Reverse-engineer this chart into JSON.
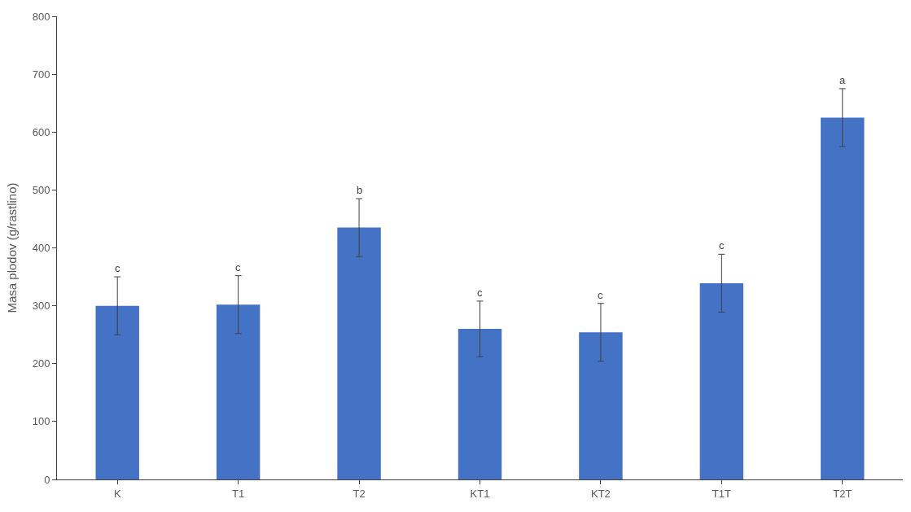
{
  "chart_data": {
    "type": "bar",
    "ylabel": "Masa plodov (g/rastlino)",
    "categories": [
      "K",
      "T1",
      "T2",
      "KT1",
      "KT2",
      "T1T",
      "T2T"
    ],
    "values": [
      300,
      302,
      435,
      260,
      254,
      339,
      625
    ],
    "errors": [
      50,
      50,
      50,
      48,
      50,
      50,
      50
    ],
    "color": "#4472c4",
    "ylim": [
      0,
      800
    ],
    "yticks": [
      0,
      100,
      200,
      300,
      400,
      500,
      600,
      700,
      800
    ],
    "grid": false,
    "annotations": [
      {
        "text": "c",
        "x": "K",
        "y": 350
      },
      {
        "text": "c",
        "x": "T1",
        "y": 352
      },
      {
        "text": "b",
        "x": "T2",
        "y": 485
      },
      {
        "text": "c",
        "x": "KT1",
        "y": 308
      },
      {
        "text": "c",
        "x": "KT2",
        "y": 304
      },
      {
        "text": "c",
        "x": "T1T",
        "y": 389
      },
      {
        "text": "a",
        "x": "T2T",
        "y": 675
      }
    ]
  }
}
